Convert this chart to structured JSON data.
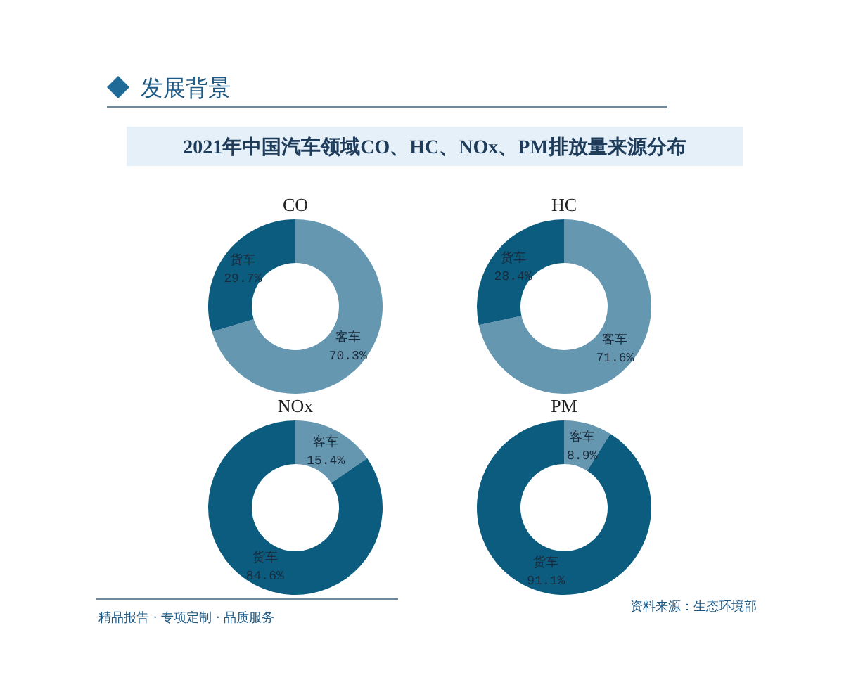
{
  "chart_data": [
    {
      "type": "other",
      "title": "2021年中国汽车领域CO、HC、NOx、PM排放量来源分布",
      "annotations": [
        "发展背景",
        "精品报告 · 专项定制 · 品质服务",
        "资料来源：生态环境部"
      ]
    },
    {
      "type": "donut",
      "title": "CO",
      "categories": [
        "客车",
        "货车"
      ],
      "values": [
        70.3,
        29.7
      ],
      "colors": [
        "#6597b1",
        "#0c5c7f"
      ],
      "value_labels": [
        "70.3%",
        "29.7%"
      ]
    },
    {
      "type": "donut",
      "title": "HC",
      "categories": [
        "客车",
        "货车"
      ],
      "values": [
        71.6,
        28.4
      ],
      "colors": [
        "#6597b1",
        "#0c5c7f"
      ],
      "value_labels": [
        "71.6%",
        "28.4%"
      ]
    },
    {
      "type": "donut",
      "title": "NOx",
      "categories": [
        "客车",
        "货车"
      ],
      "values": [
        15.4,
        84.6
      ],
      "colors": [
        "#6597b1",
        "#0c5c7f"
      ],
      "value_labels": [
        "15.4%",
        "84.6%"
      ]
    },
    {
      "type": "donut",
      "title": "PM",
      "categories": [
        "客车",
        "货车"
      ],
      "values": [
        8.9,
        91.1
      ],
      "colors": [
        "#6597b1",
        "#0c5c7f"
      ],
      "value_labels": [
        "8.9%",
        "91.1%"
      ]
    }
  ]
}
